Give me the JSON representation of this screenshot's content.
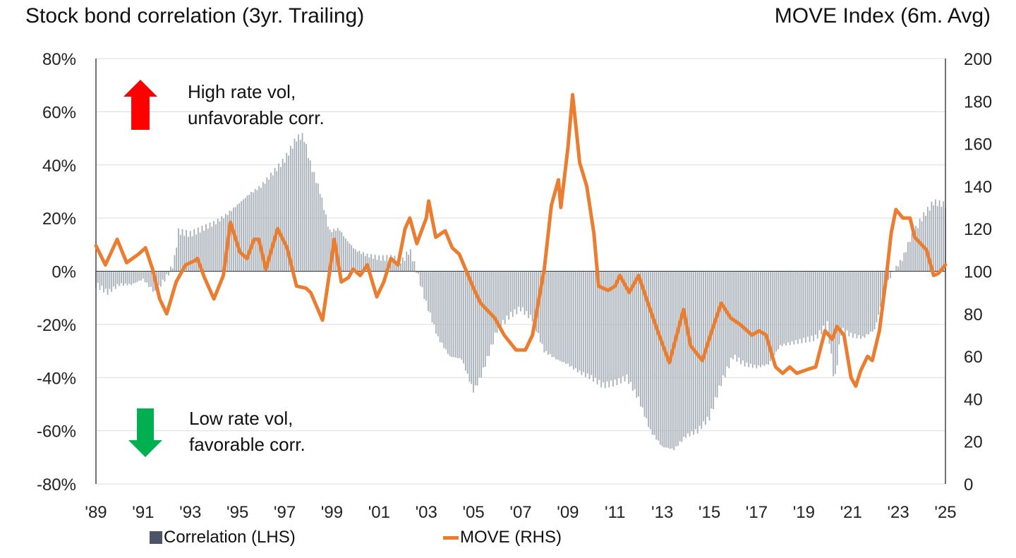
{
  "chart_data": {
    "type": "bar+line",
    "title_left": "Stock bond correlation (3yr. Trailing)",
    "title_right": "MOVE Index (6m. Avg)",
    "x_ticks": [
      "'89",
      "'91",
      "'93",
      "'95",
      "'97",
      "'99",
      "'01",
      "'03",
      "'05",
      "'07",
      "'09",
      "'11",
      "'13",
      "'15",
      "'17",
      "'19",
      "'21",
      "'23",
      "'25"
    ],
    "xlim": [
      1989,
      2025
    ],
    "y_left": {
      "ticks": [
        "80%",
        "60%",
        "40%",
        "20%",
        "0%",
        "-20%",
        "-40%",
        "-60%",
        "-80%"
      ],
      "ylim": [
        -80,
        80
      ],
      "unit": "%"
    },
    "y_right": {
      "ticks": [
        "200",
        "180",
        "160",
        "140",
        "120",
        "100",
        "80",
        "60",
        "40",
        "20",
        "0"
      ],
      "ylim": [
        0,
        200
      ]
    },
    "grid": true,
    "legend_placement": "bottom",
    "annotations": [
      {
        "lines": [
          "High rate vol,",
          "unfavorable corr."
        ],
        "arrow": "up",
        "color": "#ff0000"
      },
      {
        "lines": [
          "Low rate vol,",
          "favorable corr."
        ],
        "arrow": "down",
        "color": "#00b050"
      }
    ],
    "series": [
      {
        "name": "Correlation (LHS)",
        "type": "bar",
        "axis": "left",
        "color": "#a7afb8",
        "legend_color": "#4b5567",
        "points": [
          [
            1989.0,
            -5
          ],
          [
            1989.5,
            -8
          ],
          [
            1990.0,
            -5
          ],
          [
            1990.5,
            -5
          ],
          [
            1991.0,
            -3
          ],
          [
            1991.5,
            -8
          ],
          [
            1992.0,
            -2
          ],
          [
            1992.3,
            3
          ],
          [
            1992.5,
            15
          ],
          [
            1993.0,
            14
          ],
          [
            1993.5,
            16
          ],
          [
            1994.0,
            18
          ],
          [
            1994.5,
            21
          ],
          [
            1995.0,
            25
          ],
          [
            1995.5,
            29
          ],
          [
            1996.0,
            32
          ],
          [
            1996.5,
            37
          ],
          [
            1997.0,
            42
          ],
          [
            1997.5,
            50
          ],
          [
            1997.8,
            51
          ],
          [
            1998.1,
            40
          ],
          [
            1998.5,
            30
          ],
          [
            1998.9,
            15
          ],
          [
            1999.3,
            16
          ],
          [
            1999.6,
            12
          ],
          [
            2000.0,
            8
          ],
          [
            2000.5,
            6
          ],
          [
            2001.0,
            5
          ],
          [
            2001.5,
            5
          ],
          [
            2002.0,
            4
          ],
          [
            2002.3,
            8
          ],
          [
            2002.6,
            0
          ],
          [
            2003.0,
            -12
          ],
          [
            2003.5,
            -25
          ],
          [
            2004.0,
            -32
          ],
          [
            2004.5,
            -33
          ],
          [
            2005.0,
            -45
          ],
          [
            2005.3,
            -40
          ],
          [
            2005.7,
            -30
          ],
          [
            2006.0,
            -22
          ],
          [
            2006.5,
            -17
          ],
          [
            2007.0,
            -14
          ],
          [
            2007.5,
            -18
          ],
          [
            2008.0,
            -30
          ],
          [
            2008.5,
            -33
          ],
          [
            2009.0,
            -35
          ],
          [
            2009.5,
            -38
          ],
          [
            2010.0,
            -40
          ],
          [
            2010.5,
            -43
          ],
          [
            2011.0,
            -42
          ],
          [
            2011.5,
            -40
          ],
          [
            2012.0,
            -48
          ],
          [
            2012.5,
            -60
          ],
          [
            2013.0,
            -66
          ],
          [
            2013.5,
            -67
          ],
          [
            2014.0,
            -62
          ],
          [
            2014.5,
            -60
          ],
          [
            2015.0,
            -55
          ],
          [
            2015.5,
            -42
          ],
          [
            2016.0,
            -32
          ],
          [
            2016.5,
            -35
          ],
          [
            2017.0,
            -36
          ],
          [
            2017.5,
            -35
          ],
          [
            2018.0,
            -28
          ],
          [
            2018.5,
            -27
          ],
          [
            2019.0,
            -26
          ],
          [
            2019.5,
            -25
          ],
          [
            2020.0,
            -20
          ],
          [
            2020.3,
            -42
          ],
          [
            2020.6,
            -22
          ],
          [
            2021.0,
            -24
          ],
          [
            2021.5,
            -25
          ],
          [
            2022.0,
            -22
          ],
          [
            2022.5,
            -5
          ],
          [
            2022.8,
            0
          ],
          [
            2023.2,
            5
          ],
          [
            2023.5,
            12
          ],
          [
            2024.0,
            20
          ],
          [
            2024.5,
            26
          ],
          [
            2025.0,
            25
          ]
        ]
      },
      {
        "name": "MOVE (RHS)",
        "type": "line",
        "axis": "right",
        "color": "#ea7d2f",
        "points": [
          [
            1989.0,
            112
          ],
          [
            1989.4,
            103
          ],
          [
            1989.9,
            115
          ],
          [
            1990.3,
            104
          ],
          [
            1990.8,
            108
          ],
          [
            1991.1,
            111
          ],
          [
            1991.4,
            101
          ],
          [
            1991.7,
            87
          ],
          [
            1992.0,
            80
          ],
          [
            1992.4,
            95
          ],
          [
            1992.8,
            103
          ],
          [
            1993.2,
            105
          ],
          [
            1993.3,
            106
          ],
          [
            1993.6,
            97
          ],
          [
            1994.0,
            87
          ],
          [
            1994.4,
            98
          ],
          [
            1994.7,
            123
          ],
          [
            1995.1,
            109
          ],
          [
            1995.4,
            106
          ],
          [
            1995.7,
            115
          ],
          [
            1995.9,
            115
          ],
          [
            1996.2,
            101
          ],
          [
            1996.7,
            120
          ],
          [
            1997.1,
            111
          ],
          [
            1997.5,
            93
          ],
          [
            1997.9,
            92
          ],
          [
            1998.1,
            90
          ],
          [
            1998.6,
            77
          ],
          [
            1998.8,
            92
          ],
          [
            1999.1,
            115
          ],
          [
            1999.4,
            95
          ],
          [
            1999.7,
            97
          ],
          [
            1999.9,
            101
          ],
          [
            2000.2,
            98
          ],
          [
            2000.5,
            103
          ],
          [
            2000.9,
            88
          ],
          [
            2001.2,
            95
          ],
          [
            2001.5,
            106
          ],
          [
            2001.8,
            103
          ],
          [
            2002.1,
            120
          ],
          [
            2002.3,
            125
          ],
          [
            2002.6,
            113
          ],
          [
            2003.0,
            125
          ],
          [
            2003.1,
            133
          ],
          [
            2003.4,
            116
          ],
          [
            2003.8,
            119
          ],
          [
            2004.1,
            111
          ],
          [
            2004.4,
            108
          ],
          [
            2004.7,
            100
          ],
          [
            2005.0,
            92
          ],
          [
            2005.3,
            85
          ],
          [
            2005.9,
            78
          ],
          [
            2006.3,
            70
          ],
          [
            2006.8,
            63
          ],
          [
            2007.2,
            63
          ],
          [
            2007.5,
            70
          ],
          [
            2008.0,
            101
          ],
          [
            2008.3,
            131
          ],
          [
            2008.6,
            143
          ],
          [
            2008.7,
            130
          ],
          [
            2009.0,
            158
          ],
          [
            2009.2,
            183
          ],
          [
            2009.5,
            151
          ],
          [
            2009.8,
            140
          ],
          [
            2010.1,
            118
          ],
          [
            2010.3,
            93
          ],
          [
            2010.7,
            91
          ],
          [
            2011.0,
            93
          ],
          [
            2011.2,
            98
          ],
          [
            2011.6,
            90
          ],
          [
            2012.0,
            98
          ],
          [
            2012.3,
            88
          ],
          [
            2012.8,
            72
          ],
          [
            2013.3,
            57
          ],
          [
            2013.9,
            82
          ],
          [
            2014.2,
            65
          ],
          [
            2014.7,
            58
          ],
          [
            2015.1,
            72
          ],
          [
            2015.5,
            85
          ],
          [
            2015.9,
            78
          ],
          [
            2016.3,
            75
          ],
          [
            2016.8,
            70
          ],
          [
            2017.1,
            72
          ],
          [
            2017.4,
            70
          ],
          [
            2017.8,
            55
          ],
          [
            2018.1,
            52
          ],
          [
            2018.4,
            55
          ],
          [
            2018.7,
            52
          ],
          [
            2019.2,
            54
          ],
          [
            2019.5,
            55
          ],
          [
            2019.9,
            72
          ],
          [
            2020.2,
            68
          ],
          [
            2020.4,
            74
          ],
          [
            2020.7,
            70
          ],
          [
            2021.0,
            50
          ],
          [
            2021.2,
            46
          ],
          [
            2021.4,
            53
          ],
          [
            2021.7,
            60
          ],
          [
            2021.9,
            58
          ],
          [
            2022.2,
            72
          ],
          [
            2022.5,
            98
          ],
          [
            2022.7,
            118
          ],
          [
            2022.9,
            129
          ],
          [
            2023.2,
            125
          ],
          [
            2023.5,
            125
          ],
          [
            2023.7,
            116
          ],
          [
            2024.2,
            110
          ],
          [
            2024.5,
            98
          ],
          [
            2024.7,
            99
          ],
          [
            2025.0,
            103
          ]
        ]
      }
    ]
  }
}
